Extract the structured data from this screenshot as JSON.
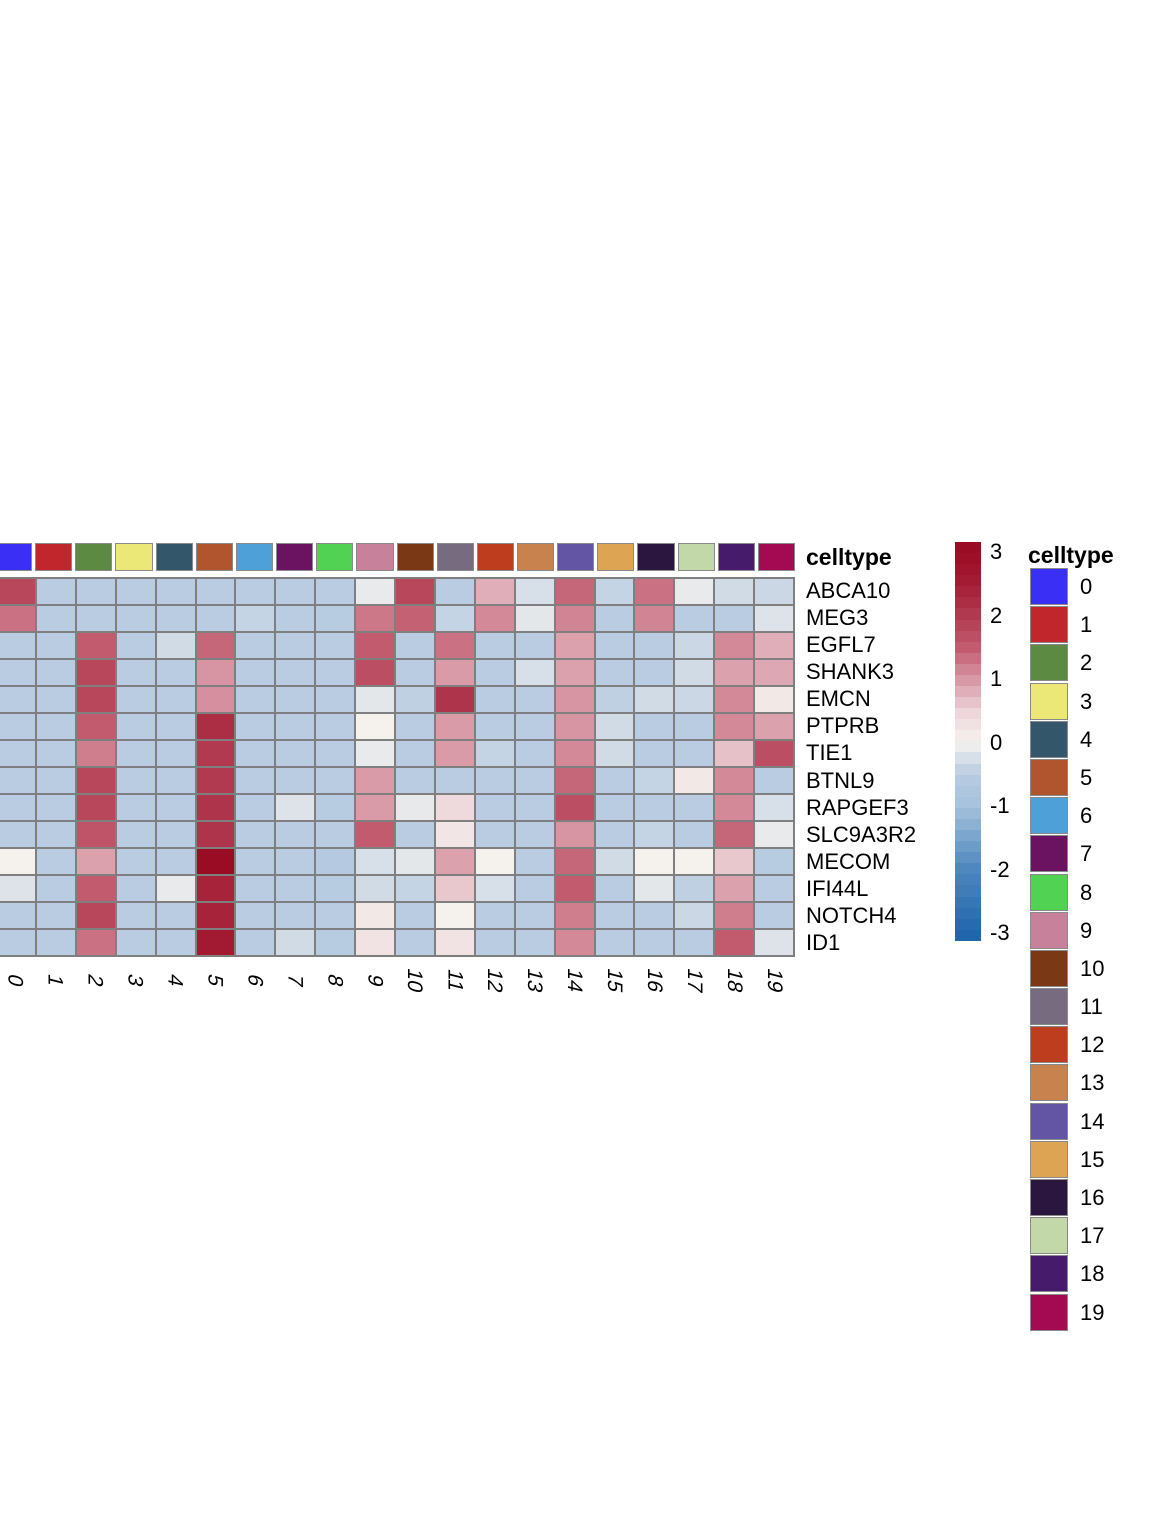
{
  "figure": {
    "annotation_title": "celltype",
    "legend_title": "celltype",
    "background": "#ffffff",
    "grid_color": "#7f7f7f"
  },
  "chart_data": {
    "type": "heatmap",
    "title": "",
    "genes": [
      "ABCA10",
      "MEG3",
      "EGFL7",
      "SHANK3",
      "EMCN",
      "PTPRB",
      "TIE1",
      "BTNL9",
      "RAPGEF3",
      "SLC9A3R2",
      "MECOM",
      "IFI44L",
      "NOTCH4",
      "ID1"
    ],
    "celltypes": [
      "0",
      "1",
      "2",
      "3",
      "4",
      "5",
      "6",
      "7",
      "8",
      "9",
      "10",
      "11",
      "12",
      "13",
      "14",
      "15",
      "16",
      "17",
      "18",
      "19"
    ],
    "celltype_colors": [
      "#3a2ff5",
      "#c0262c",
      "#5d8a42",
      "#ebe878",
      "#33566b",
      "#b0552e",
      "#4da0d8",
      "#6b1261",
      "#52d252",
      "#c8819a",
      "#7a3815",
      "#776b80",
      "#bf3d1f",
      "#c8824d",
      "#6355a4",
      "#dda453",
      "#2b1640",
      "#c3d8a8",
      "#471b6b",
      "#a40a52"
    ],
    "matrix": [
      [
        1.8,
        -0.5,
        -0.5,
        -0.5,
        -0.5,
        -0.5,
        -0.5,
        -0.5,
        -0.5,
        -0.1,
        1.8,
        -0.5,
        0.8,
        -0.25,
        1.4,
        -0.4,
        1.3,
        -0.1,
        -0.3,
        -0.35
      ],
      [
        1.3,
        -0.5,
        -0.5,
        -0.5,
        -0.5,
        -0.5,
        -0.4,
        -0.5,
        -0.55,
        1.25,
        1.45,
        -0.4,
        1.1,
        -0.15,
        1.15,
        -0.5,
        1.15,
        -0.5,
        -0.5,
        -0.2
      ],
      [
        -0.5,
        -0.5,
        1.5,
        -0.5,
        -0.3,
        1.4,
        -0.5,
        -0.5,
        -0.5,
        1.5,
        -0.5,
        1.3,
        -0.5,
        -0.5,
        0.9,
        -0.5,
        -0.5,
        -0.35,
        1.1,
        0.8
      ],
      [
        -0.5,
        -0.5,
        1.8,
        -0.5,
        -0.5,
        1.0,
        -0.5,
        -0.5,
        -0.5,
        1.7,
        -0.5,
        0.95,
        -0.5,
        -0.25,
        0.9,
        -0.5,
        -0.5,
        -0.3,
        0.9,
        0.85
      ],
      [
        -0.5,
        -0.5,
        1.8,
        -0.5,
        -0.5,
        1.05,
        -0.5,
        -0.5,
        -0.5,
        -0.15,
        -0.45,
        2.1,
        -0.5,
        -0.5,
        1.0,
        -0.45,
        -0.3,
        -0.35,
        1.1,
        0.15
      ],
      [
        -0.5,
        -0.5,
        1.5,
        -0.5,
        -0.5,
        2.2,
        -0.5,
        -0.5,
        -0.5,
        0.0,
        -0.5,
        0.95,
        -0.5,
        -0.5,
        1.0,
        -0.3,
        -0.5,
        -0.5,
        1.1,
        0.9
      ],
      [
        -0.5,
        -0.5,
        1.2,
        -0.5,
        -0.5,
        2.0,
        -0.5,
        -0.5,
        -0.5,
        -0.1,
        -0.5,
        0.95,
        -0.4,
        -0.5,
        1.1,
        -0.3,
        -0.5,
        -0.5,
        0.65,
        1.7
      ],
      [
        -0.5,
        -0.5,
        1.8,
        -0.5,
        -0.5,
        2.0,
        -0.5,
        -0.5,
        -0.5,
        0.95,
        -0.5,
        -0.5,
        -0.5,
        -0.5,
        1.4,
        -0.5,
        -0.4,
        0.15,
        1.1,
        -0.5
      ],
      [
        -0.5,
        -0.5,
        1.8,
        -0.5,
        -0.5,
        2.1,
        -0.5,
        -0.2,
        -0.55,
        0.95,
        -0.12,
        0.4,
        -0.5,
        -0.5,
        1.7,
        -0.5,
        -0.5,
        -0.5,
        1.1,
        -0.25
      ],
      [
        -0.5,
        -0.5,
        1.6,
        -0.5,
        -0.5,
        2.1,
        -0.5,
        -0.5,
        -0.5,
        1.5,
        -0.5,
        0.2,
        -0.5,
        -0.5,
        1.0,
        -0.5,
        -0.4,
        -0.5,
        1.4,
        -0.1
      ],
      [
        0.0,
        -0.5,
        0.9,
        -0.5,
        -0.5,
        3.0,
        -0.5,
        -0.5,
        -0.6,
        -0.25,
        -0.15,
        0.9,
        0.0,
        -0.5,
        1.4,
        -0.3,
        0.0,
        0.02,
        0.6,
        -0.55
      ],
      [
        -0.2,
        -0.5,
        1.5,
        -0.5,
        -0.1,
        2.4,
        -0.5,
        -0.5,
        -0.55,
        -0.3,
        -0.4,
        0.6,
        -0.25,
        -0.5,
        1.5,
        -0.5,
        -0.15,
        -0.45,
        0.9,
        -0.5
      ],
      [
        -0.5,
        -0.5,
        1.8,
        -0.5,
        -0.5,
        2.4,
        -0.5,
        -0.5,
        -0.5,
        0.15,
        -0.5,
        0.0,
        -0.5,
        -0.5,
        1.2,
        -0.5,
        -0.5,
        -0.35,
        1.2,
        -0.5
      ],
      [
        -0.5,
        -0.5,
        1.3,
        -0.5,
        -0.5,
        2.6,
        -0.5,
        -0.3,
        -0.55,
        0.25,
        -0.5,
        0.25,
        -0.5,
        -0.5,
        1.1,
        -0.5,
        -0.5,
        -0.5,
        1.5,
        -0.2
      ]
    ],
    "value_domain": [
      -3,
      3
    ],
    "colorbar": {
      "tick_labels": [
        "3",
        "2",
        "1",
        "0",
        "-1",
        "-2",
        "-3"
      ],
      "tick_values": [
        3,
        2,
        1,
        0,
        -1,
        -2,
        -3
      ]
    },
    "colorscale": [
      {
        "v": -3,
        "c": "#2166ac"
      },
      {
        "v": -2,
        "c": "#4f87bf"
      },
      {
        "v": -1,
        "c": "#a5c2dc"
      },
      {
        "v": -0.5,
        "c": "#b9cce1"
      },
      {
        "v": 0,
        "c": "#f5f2ee"
      },
      {
        "v": 0.5,
        "c": "#ecd4d8"
      },
      {
        "v": 1,
        "c": "#d795a3"
      },
      {
        "v": 1.5,
        "c": "#c25b6e"
      },
      {
        "v": 2,
        "c": "#b13a50"
      },
      {
        "v": 2.5,
        "c": "#a41d35"
      },
      {
        "v": 3,
        "c": "#9a0c23"
      }
    ],
    "legend_position": "right",
    "grid": true
  }
}
